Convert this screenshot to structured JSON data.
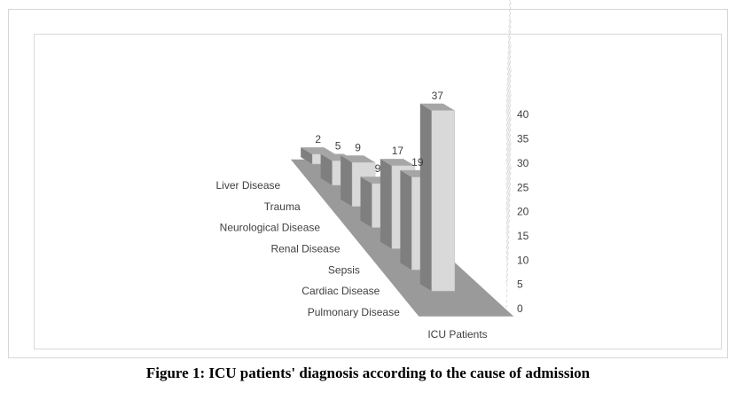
{
  "figure": {
    "caption": "Figure 1: ICU patients' diagnosis according to the cause of admission"
  },
  "chart_data": {
    "type": "bar",
    "style": "3d-column",
    "series_axis_label": "ICU Patients",
    "categories": [
      "Liver Disease",
      "Trauma",
      "Neurological Disease",
      "Renal Disease",
      "Sepsis",
      "Cardiac Disease",
      "Pulmonary Disease"
    ],
    "values": [
      2,
      5,
      9,
      9,
      17,
      19,
      37
    ],
    "data_labels": [
      "2",
      "5",
      "9",
      "9",
      "17",
      "19",
      "37"
    ],
    "ylim": [
      0,
      40
    ],
    "yticks": [
      "0",
      "5",
      "10",
      "15",
      "20",
      "25",
      "30",
      "35",
      "40"
    ],
    "grid": true,
    "colors": {
      "bar_front": "#d9d9d9",
      "bar_side": "#7f7f7f",
      "bar_top": "#a6a6a6",
      "floor": "#9a9a9a",
      "grid": "#d9d9d9"
    }
  }
}
